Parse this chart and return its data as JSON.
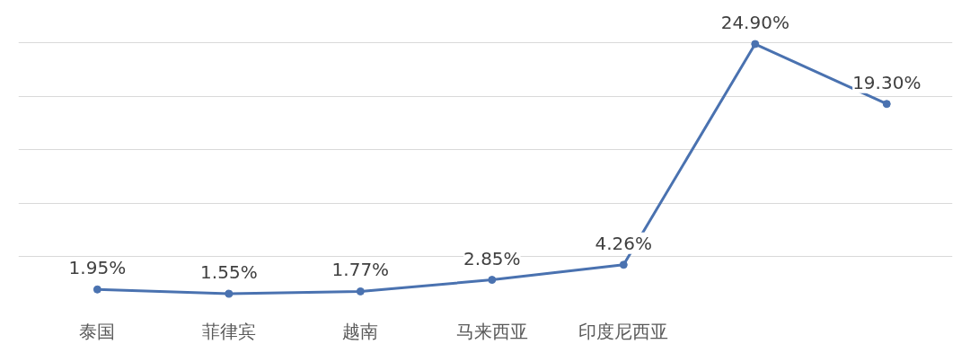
{
  "chart_data": {
    "type": "line",
    "categories": [
      "泰国",
      "菲律宾",
      "越南",
      "马来西亚",
      "印度尼西亚",
      null,
      null
    ],
    "series": [
      {
        "color": "#4a72b0",
        "values": [
          1.95,
          1.55,
          1.77,
          2.85,
          4.26,
          24.9,
          19.3
        ],
        "value_labels": [
          "1.95%",
          "1.55%",
          "1.77%",
          "2.85%",
          "4.26%",
          "24.90%",
          "19.30%"
        ]
      }
    ],
    "grid": "y",
    "tick_labels": "x",
    "marker": "circle",
    "line_style": "solid"
  }
}
